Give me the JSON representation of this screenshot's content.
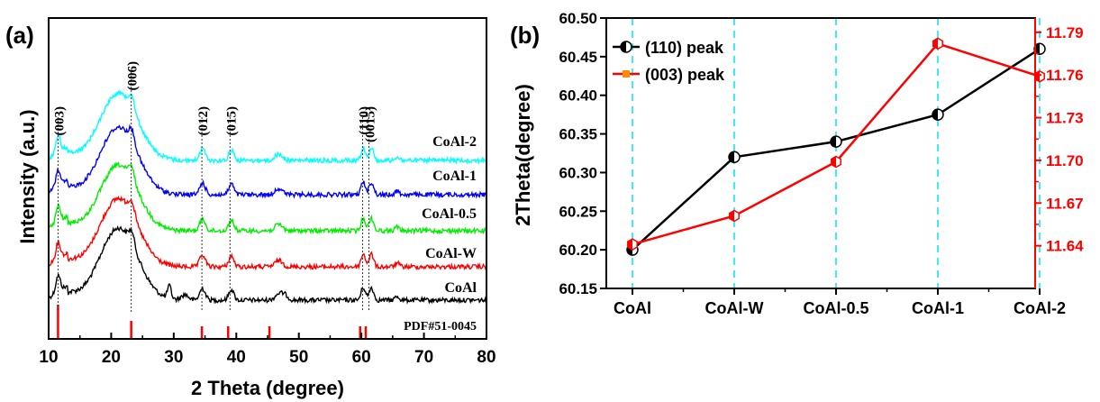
{
  "panel_a": {
    "label": "(a)",
    "xlabel": "2 Theta (degree)",
    "ylabel": "Intensity (a.u.)",
    "peak_labels": [
      "(003)",
      "(006)",
      "(012)",
      "(015)",
      "(110)",
      "(0015)"
    ],
    "pdf_label": "PDF#51-0045"
  },
  "panel_b": {
    "label": "(b)",
    "ylabel_left": "2Theta(degree)",
    "legend": [
      "(110) peak",
      "(003) peak"
    ]
  },
  "colors": {
    "CoAl": "#000000",
    "CoAl-W": "#ff0000",
    "CoAl-0.5": "#00ee00",
    "CoAl-1": "#0000ff",
    "CoAl-2": "#00ffff",
    "red_axis": "#ff0000",
    "guide": "#00e5ee"
  },
  "chart_data": [
    {
      "type": "line",
      "title": "",
      "xlabel": "2 Theta (degree)",
      "ylabel": "Intensity (a.u.)",
      "xlim": [
        10,
        80
      ],
      "xticks": [
        10,
        20,
        30,
        40,
        50,
        60,
        70,
        80
      ],
      "series": [
        {
          "name": "CoAl"
        },
        {
          "name": "CoAl-W"
        },
        {
          "name": "CoAl-0.5"
        },
        {
          "name": "CoAl-1"
        },
        {
          "name": "CoAl-2"
        }
      ],
      "peaks": [
        {
          "label": "(003)",
          "x": 11.5
        },
        {
          "label": "(006)",
          "x": 23.2
        },
        {
          "label": "(012)",
          "x": 34.5
        },
        {
          "label": "(015)",
          "x": 39.0
        },
        {
          "label": "(110)",
          "x": 60.2
        },
        {
          "label": "(0015)",
          "x": 61.2
        }
      ],
      "reference": {
        "label": "PDF#51-0045",
        "x": [
          11.5,
          23.2,
          34.5,
          38.7,
          45.3,
          59.8,
          60.7
        ]
      }
    },
    {
      "type": "line",
      "title": "",
      "ylabel": "2Theta(degree)",
      "categories": [
        "CoAl",
        "CoAl-W",
        "CoAl-0.5",
        "CoAl-1",
        "CoAl-2"
      ],
      "ylim_left": [
        60.15,
        60.5
      ],
      "yticks_left": [
        "60.15",
        "60.20",
        "60.25",
        "60.30",
        "60.35",
        "60.40",
        "60.45",
        "60.50"
      ],
      "ylim_right": [
        11.61,
        11.8
      ],
      "yticks_right": [
        "11.64",
        "11.67",
        "11.70",
        "11.73",
        "11.76",
        "11.79"
      ],
      "legend_position": "top-left",
      "series": [
        {
          "name": "(110) peak",
          "axis": "left",
          "values": [
            60.2,
            60.32,
            60.34,
            60.375,
            60.46
          ]
        },
        {
          "name": "(003) peak",
          "axis": "right",
          "values": [
            11.641,
            11.661,
            11.699,
            11.782,
            11.759
          ]
        }
      ]
    }
  ]
}
